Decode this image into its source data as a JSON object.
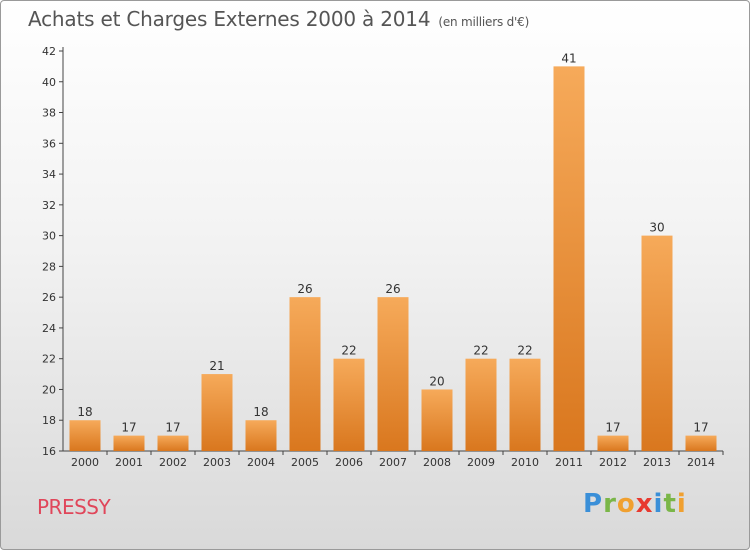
{
  "title": "Achats et Charges Externes 2000 à 2014",
  "unit": "(en milliers d'€)",
  "place": "PRESSY",
  "logo": {
    "letters": [
      "P",
      "r",
      "o",
      "x",
      "i",
      "t",
      "i"
    ],
    "colors": [
      "#3a8fd8",
      "#7ab648",
      "#f0a030",
      "#e83a30",
      "#3a8fd8",
      "#7ab648",
      "#f0a030"
    ]
  },
  "colors": {
    "bar_top": "#f6aa5a",
    "bar_bottom": "#d9771e",
    "axis": "#444444",
    "grid": "#999999"
  },
  "chart_data": {
    "type": "bar",
    "categories": [
      "2000",
      "2001",
      "2002",
      "2003",
      "2004",
      "2005",
      "2006",
      "2007",
      "2008",
      "2009",
      "2010",
      "2011",
      "2012",
      "2013",
      "2014"
    ],
    "values": [
      18,
      17,
      17,
      21,
      18,
      26,
      22,
      26,
      20,
      22,
      22,
      41,
      17,
      30,
      17
    ],
    "data_labels": [
      "18",
      "17",
      "17",
      "21",
      "18",
      "26",
      "22",
      "26",
      "20",
      "22",
      "22",
      "41",
      "17",
      "30",
      "17"
    ],
    "yticks": [
      "16",
      "18",
      "20",
      "22",
      "24",
      "26",
      "28",
      "30",
      "32",
      "34",
      "36",
      "38",
      "40",
      "42"
    ],
    "ylim": [
      16,
      42
    ],
    "grid": false,
    "title": "Achats et Charges Externes 2000 à 2014",
    "xlabel": "",
    "ylabel": ""
  }
}
